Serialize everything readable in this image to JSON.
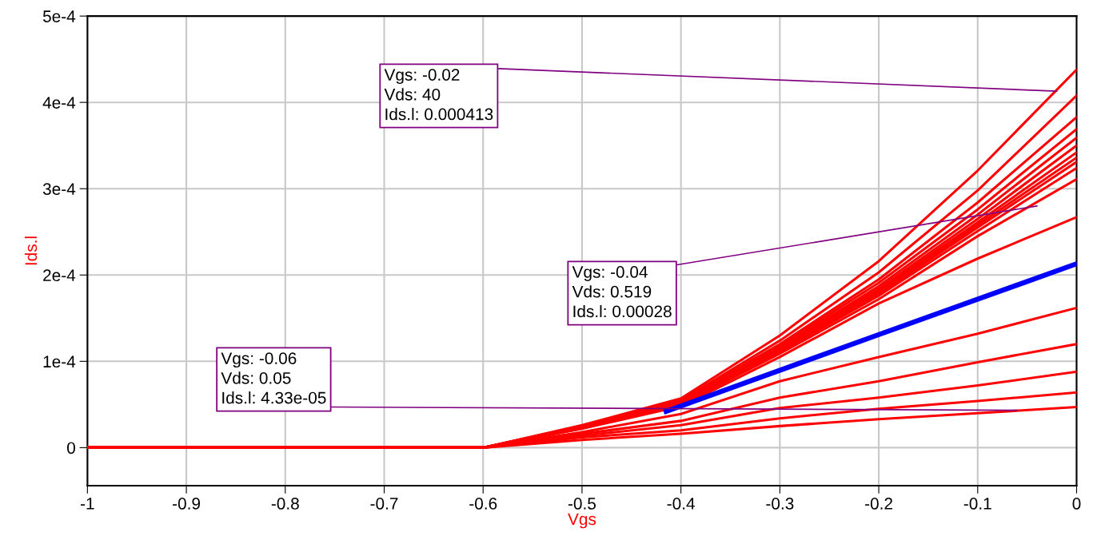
{
  "chart_data": {
    "type": "line",
    "xlabel": "Vgs",
    "ylabel": "Ids.l",
    "xlim": [
      -1,
      0
    ],
    "ylim": [
      -4.4e-05,
      0.0005
    ],
    "xticks": [
      -1,
      -0.9,
      -0.8,
      -0.7,
      -0.6,
      -0.5,
      -0.4,
      -0.3,
      -0.2,
      -0.1,
      0
    ],
    "yticks": [
      0,
      {
        "value": 0.0001,
        "label": "1e-4"
      },
      {
        "value": 0.0002,
        "label": "2e-4"
      },
      {
        "value": 0.0003,
        "label": "3e-4"
      },
      {
        "value": 0.0004,
        "label": "4e-4"
      },
      {
        "value": 0.0005,
        "label": "5e-4"
      }
    ],
    "x": [
      -1,
      -0.6,
      -0.5,
      -0.4,
      -0.3,
      -0.2,
      -0.1,
      0
    ],
    "grid": true,
    "marker": "none",
    "line_style": "solid",
    "series": [
      {
        "color": "#ff0000",
        "values": [
          0,
          0,
          2.6e-05,
          5.7e-05,
          0.00013,
          0.000216,
          0.000321,
          0.000438
        ]
      },
      {
        "color": "#ff0000",
        "values": [
          0,
          0,
          2.5e-05,
          5.5e-05,
          0.000124,
          0.000203,
          0.000298,
          0.000408
        ]
      },
      {
        "color": "#ff0000",
        "values": [
          0,
          0,
          2.5e-05,
          5.4e-05,
          0.00012,
          0.000195,
          0.000284,
          0.000383
        ]
      },
      {
        "color": "#ff0000",
        "values": [
          0,
          0,
          2.4e-05,
          5.4e-05,
          0.000118,
          0.000191,
          0.000276,
          0.000369
        ]
      },
      {
        "color": "#ff0000",
        "values": [
          0,
          0,
          2.4e-05,
          5.3e-05,
          0.000116,
          0.000187,
          0.00027,
          0.000359
        ]
      },
      {
        "color": "#ff0000",
        "values": [
          0,
          0,
          2.4e-05,
          5.3e-05,
          0.000115,
          0.000184,
          0.000265,
          0.00035
        ]
      },
      {
        "color": "#ff0000",
        "values": [
          0,
          0,
          2.3e-05,
          5.2e-05,
          0.000114,
          0.000182,
          0.000261,
          0.000342
        ]
      },
      {
        "color": "#ff0000",
        "values": [
          0,
          0,
          2.3e-05,
          5.2e-05,
          0.000113,
          0.00018,
          0.000258,
          0.000336
        ]
      },
      {
        "color": "#ff0000",
        "values": [
          0,
          0,
          2.3e-05,
          5.2e-05,
          0.000112,
          0.000178,
          0.000255,
          0.000331
        ]
      },
      {
        "color": "#ff0000",
        "values": [
          0,
          0,
          2.3e-05,
          5.1e-05,
          0.000111,
          0.000176,
          0.000251,
          0.000324
        ]
      },
      {
        "color": "#ff0000",
        "values": [
          0,
          0,
          2.2e-05,
          5e-05,
          0.000109,
          0.000172,
          0.000245,
          0.000311
        ]
      },
      {
        "color": "#ff0000",
        "values": [
          0,
          0,
          2.2e-05,
          4.8e-05,
          0.000105,
          0.000167,
          0.000219,
          0.000267
        ]
      },
      {
        "color": "#ff0000",
        "values": [
          0,
          0,
          1.8e-05,
          3.9e-05,
          7.7e-05,
          0.000105,
          0.000132,
          0.000162
        ]
      },
      {
        "color": "#ff0000",
        "values": [
          0,
          0,
          1.6e-05,
          3.1e-05,
          5.8e-05,
          7.7e-05,
          9.9e-05,
          0.00012
        ]
      },
      {
        "color": "#ff0000",
        "values": [
          0,
          0,
          1.4e-05,
          2.6e-05,
          4.6e-05,
          5.8e-05,
          7.2e-05,
          8.8e-05
        ]
      },
      {
        "color": "#ff0000",
        "values": [
          0,
          0,
          1.2e-05,
          2e-05,
          3.4e-05,
          4.5e-05,
          5.4e-05,
          6.4e-05
        ]
      },
      {
        "color": "#ff0000",
        "values": [
          0,
          0,
          9e-06,
          1.6e-05,
          2.5e-05,
          3.3e-05,
          4e-05,
          4.7e-05
        ]
      },
      {
        "color": "#0000ff",
        "x": [
          -0.415,
          -0.2,
          0
        ],
        "values": [
          4.2e-05,
          0.000131,
          0.000213
        ]
      }
    ],
    "annotations": [
      {
        "text": "Vgs: -0.02\nVds: 40\nIds.l: 0.000413",
        "x": -0.02,
        "y": 0.000413
      },
      {
        "text": "Vgs: -0.04\nVds: 0.519\nIds.l: 0.00028",
        "x": -0.04,
        "y": 0.00028
      },
      {
        "text": "Vgs: -0.06\nVds: 0.05\nIds.l: 4.33e-05",
        "x": -0.06,
        "y": 4.33e-05
      }
    ]
  }
}
